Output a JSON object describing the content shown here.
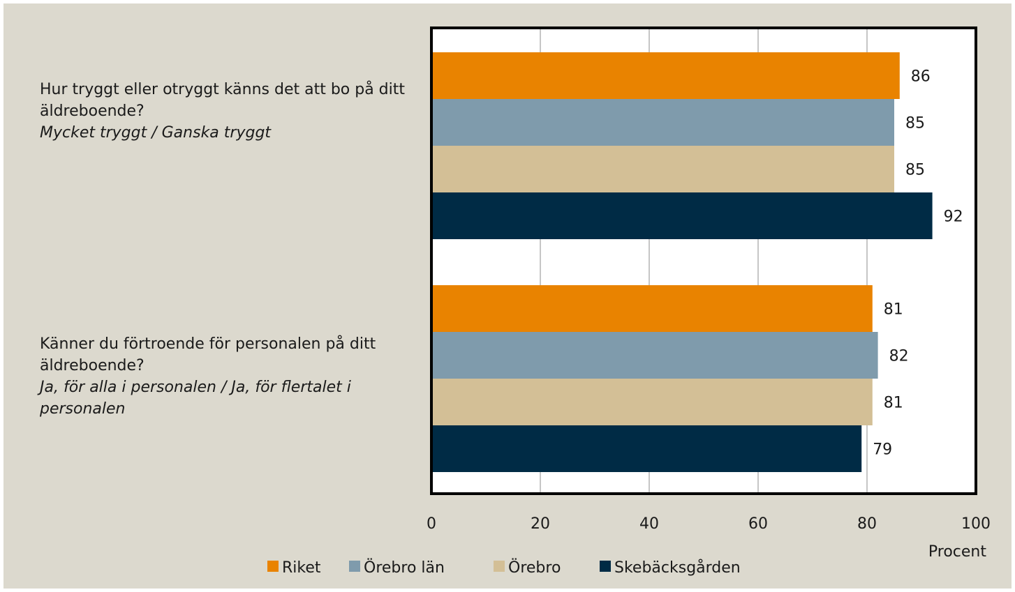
{
  "chart_data": {
    "type": "bar",
    "orientation": "horizontal",
    "categories": [
      {
        "question": "Hur tryggt eller otryggt känns det att bo på ditt äldreboende?",
        "answer": "Mycket tryggt / Ganska tryggt"
      },
      {
        "question": "Känner du förtroende för personalen på ditt äldreboende?",
        "answer": "Ja, för alla i personalen / Ja, för flertalet i personalen"
      }
    ],
    "series": [
      {
        "name": "Riket",
        "color": "#E98300",
        "values": [
          86,
          81
        ]
      },
      {
        "name": "Örebro län",
        "color": "#7F9BAC",
        "values": [
          85,
          82
        ]
      },
      {
        "name": "Örebro",
        "color": "#D3BF96",
        "values": [
          85,
          81
        ]
      },
      {
        "name": "Skebäcksgården",
        "color": "#002B45",
        "values": [
          92,
          79
        ]
      }
    ],
    "xlabel": "Procent",
    "xlim": [
      0,
      100
    ],
    "xticks": [
      0,
      20,
      40,
      60,
      80,
      100
    ],
    "data_labels": true,
    "grid": "vertical",
    "legend_position": "bottom"
  },
  "style": {
    "background": "#DCD9CE",
    "plot_background": "#FFFFFF",
    "grid_color": "#8C8C8C",
    "axis_color": "#000000"
  }
}
